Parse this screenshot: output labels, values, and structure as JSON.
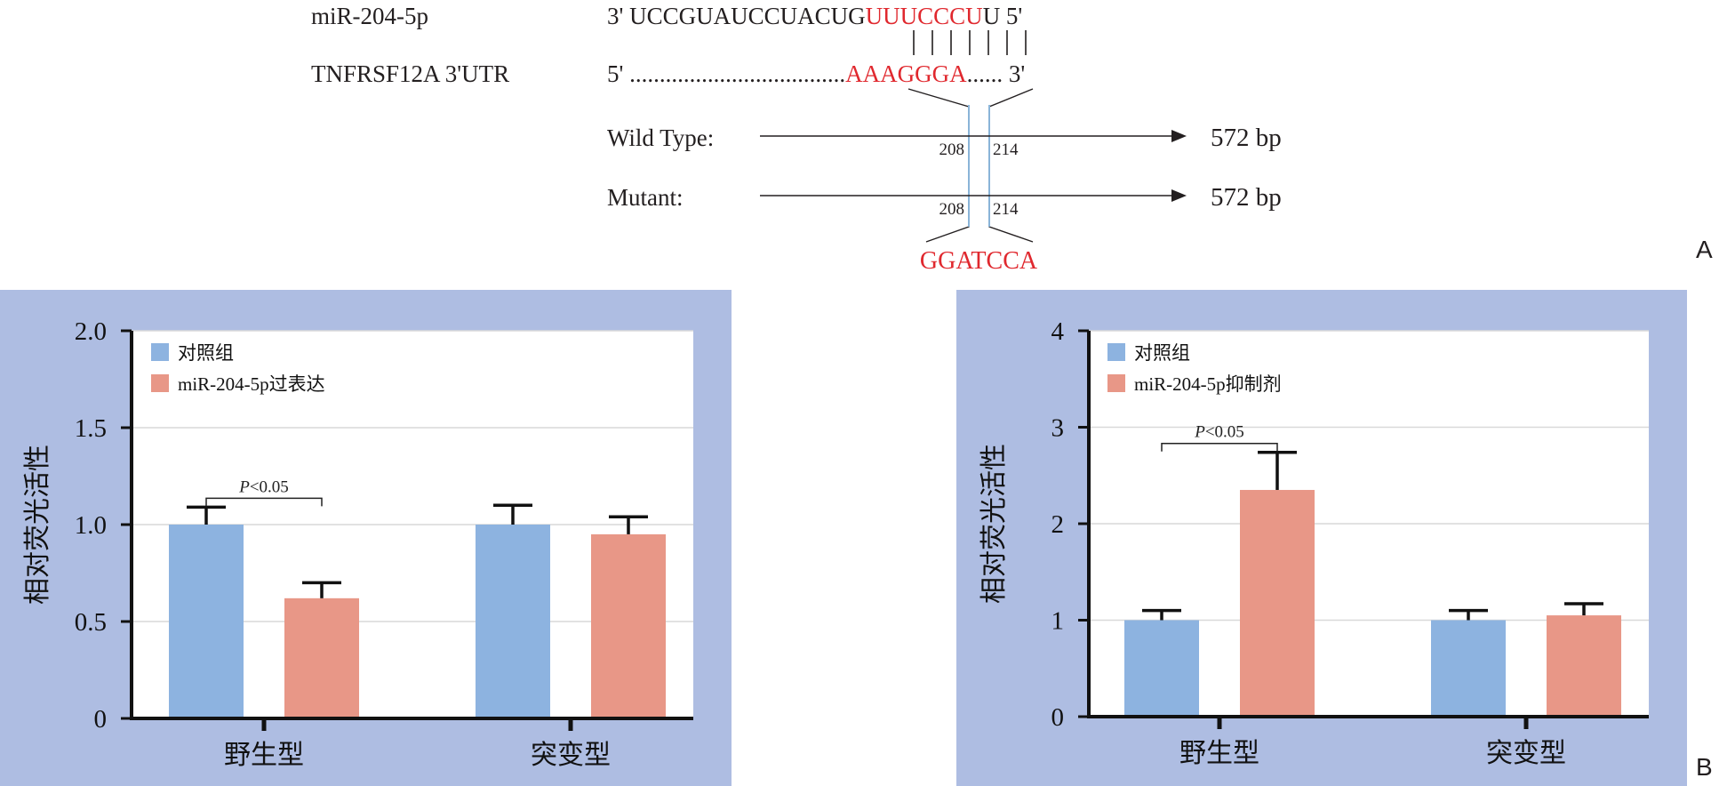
{
  "panelA": {
    "mirna_label": "miR-204-5p",
    "mirna_seq_prefix": "3' UCCGUAUCCUACUG",
    "mirna_seed": "UUUCCCU",
    "mirna_seq_suffix": "U 5'",
    "utr_label": "TNFRSF12A 3'UTR",
    "utr_prefix": "5' ....................................",
    "utr_site": "AAAGGGA",
    "utr_suffix": "...... 3'",
    "wild_type_label": "Wild Type:",
    "mutant_label": "Mutant:",
    "wt_length": "572 bp",
    "mut_length": "572 bp",
    "pos_start": "208",
    "pos_end": "214",
    "mutant_site": "GGATCCA",
    "panel_letter": "A",
    "colors": {
      "seed": "#e0282e",
      "site_line": "#8ab4d8",
      "text": "#231f20"
    }
  },
  "panel_letter_b": "B",
  "chart_data": [
    {
      "type": "bar",
      "categories": [
        "野生型",
        "突变型"
      ],
      "ylabel": "相对荧光活性",
      "ylim": [
        0,
        2.0
      ],
      "yticks": [
        "0",
        "0.5",
        "1.0",
        "1.5",
        "2.0"
      ],
      "ytick_values": [
        0,
        0.5,
        1.0,
        1.5,
        2.0
      ],
      "series": [
        {
          "name": "对照组",
          "values": [
            1.0,
            1.0
          ],
          "errors": [
            0.09,
            0.1
          ],
          "color": "#8db3e0"
        },
        {
          "name": "miR-204-5p过表达",
          "values": [
            0.62,
            0.95
          ],
          "errors": [
            0.08,
            0.09
          ],
          "color": "#e89787"
        }
      ],
      "annotation": {
        "text_italic": "P",
        "text_rest": "<0.05",
        "category_index": 0
      },
      "legend": "top-left",
      "grid": true,
      "background": "#aebde2"
    },
    {
      "type": "bar",
      "categories": [
        "野生型",
        "突变型"
      ],
      "ylabel": "相对荧光活性",
      "ylim": [
        0,
        4
      ],
      "yticks": [
        "0",
        "1",
        "2",
        "3",
        "4"
      ],
      "ytick_values": [
        0,
        1,
        2,
        3,
        4
      ],
      "series": [
        {
          "name": "对照组",
          "values": [
            1.0,
            1.0
          ],
          "errors": [
            0.1,
            0.1
          ],
          "color": "#8db3e0"
        },
        {
          "name": "miR-204-5p抑制剂",
          "values": [
            2.35,
            1.05
          ],
          "errors": [
            0.39,
            0.12
          ],
          "color": "#e89787"
        }
      ],
      "annotation": {
        "text_italic": "P",
        "text_rest": "<0.05",
        "category_index": 0
      },
      "legend": "top-left",
      "grid": true,
      "background": "#aebde2"
    }
  ]
}
